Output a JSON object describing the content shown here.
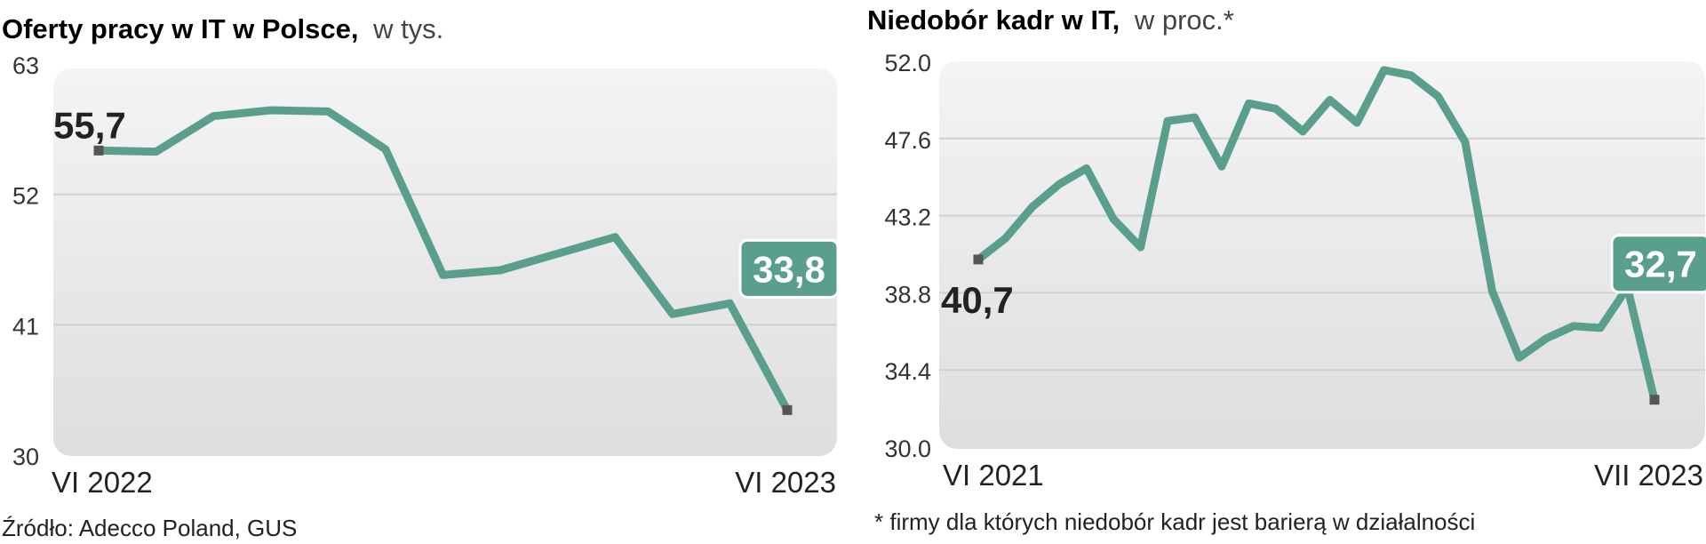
{
  "chart_data": [
    {
      "type": "line",
      "title": "Oferty pracy w IT  w Polsce,",
      "subtitle": "w tys.",
      "yticks": [
        "63",
        "52",
        "41",
        "30"
      ],
      "ylim": [
        30,
        63
      ],
      "x_start_label": "VI 2022",
      "x_end_label": "VI 2023",
      "start_value_label": "55,7",
      "end_value_label": "33,8",
      "values": [
        55.7,
        55.6,
        58.6,
        59.1,
        59.0,
        55.8,
        45.2,
        45.6,
        47.0,
        48.4,
        41.9,
        42.8,
        33.8
      ],
      "line_color": "#5a9f8d",
      "grid": true,
      "source": "Źródło: Adecco Poland, GUS"
    },
    {
      "type": "line",
      "title": "Niedobór kadr w IT,",
      "subtitle": "w proc.*",
      "yticks": [
        "52.0",
        "47.6",
        "43.2",
        "38.8",
        "34.4",
        "30.0"
      ],
      "ylim": [
        30,
        52
      ],
      "x_start_label": "VI 2021",
      "x_end_label": "VII 2023",
      "start_value_label": "40,7",
      "end_value_label": "32,7",
      "values": [
        40.7,
        41.9,
        43.7,
        45.0,
        45.9,
        43.0,
        41.4,
        48.6,
        48.8,
        46.0,
        49.6,
        49.3,
        48.0,
        49.8,
        48.5,
        51.5,
        51.2,
        50.0,
        47.4,
        38.9,
        35.1,
        36.2,
        36.9,
        36.8,
        39.1,
        32.7
      ],
      "line_color": "#5a9f8d",
      "grid": true,
      "footnote": "* firmy dla których niedobór kadr jest barierą w działalności"
    }
  ]
}
